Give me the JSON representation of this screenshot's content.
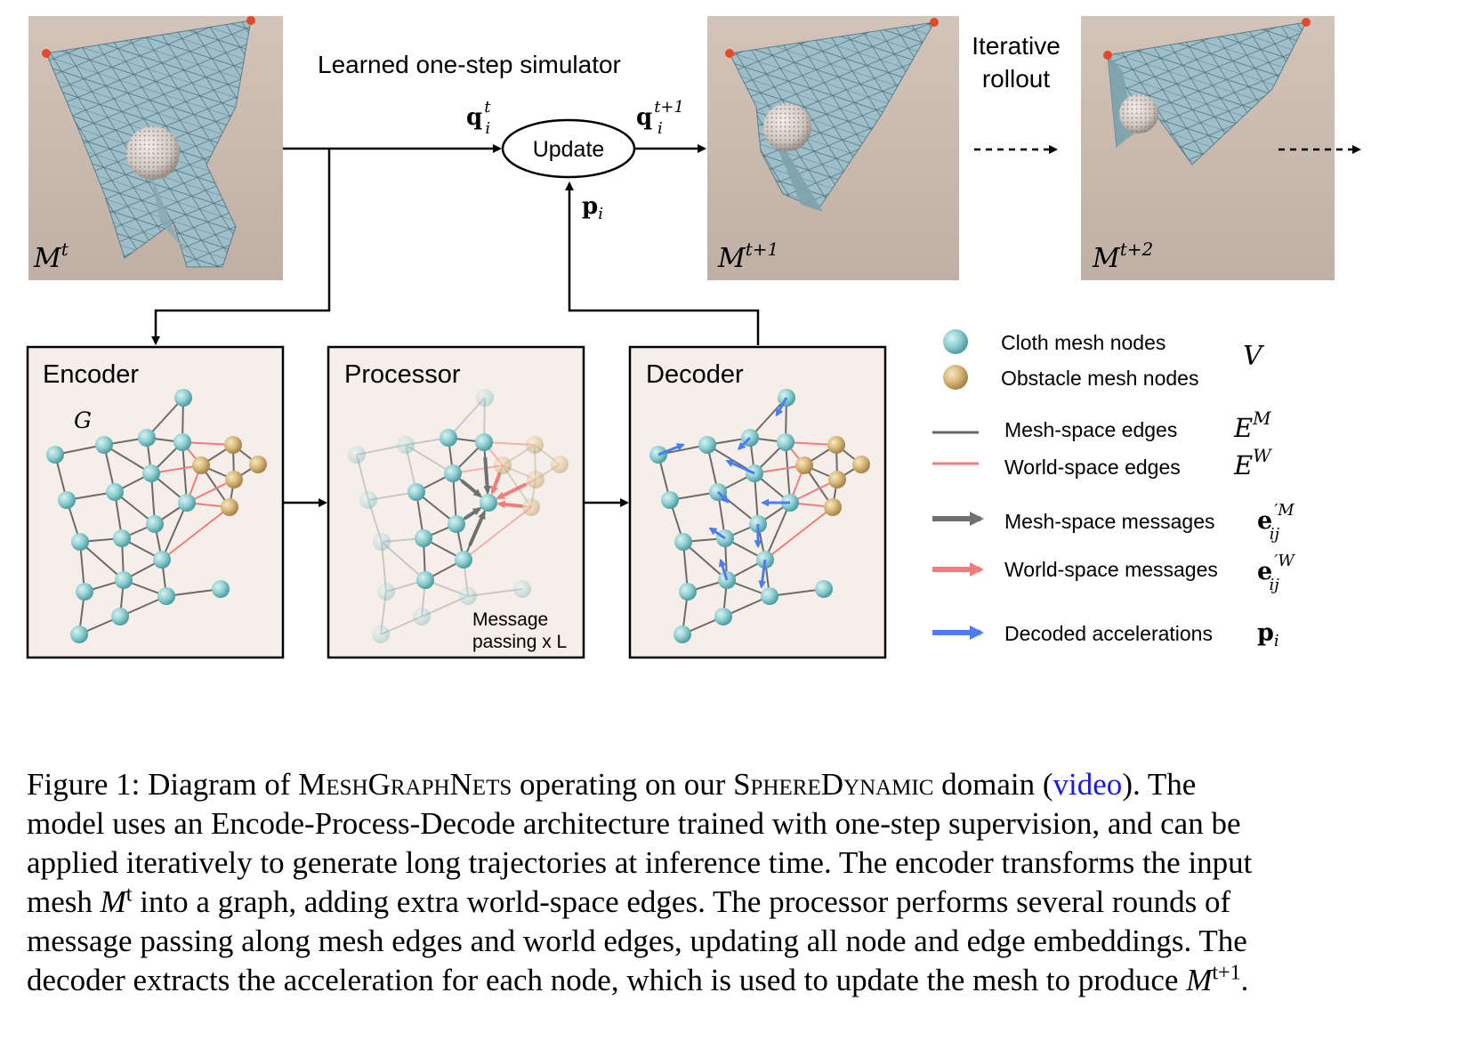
{
  "figure": {
    "simulator_title": "Learned one-step simulator",
    "iterative_rollout": [
      "Iterative",
      "rollout"
    ],
    "update_label": "Update",
    "q_t_sub": "i",
    "q_t_sup": "t",
    "q_t1_sub": "i",
    "q_t1_sup": "t+1",
    "p_label": "p",
    "p_sub": "i",
    "panels": [
      {
        "label_main": "M",
        "label_sup": "t"
      },
      {
        "label_main": "M",
        "label_sup": "t+1"
      },
      {
        "label_main": "M",
        "label_sup": "t+2"
      }
    ],
    "boxes": {
      "encoder": "Encoder",
      "processor": "Processor",
      "decoder": "Decoder",
      "graph_label": "G",
      "message_passing": [
        "Message",
        "passing x L"
      ]
    },
    "legend": {
      "cloth_nodes": "Cloth mesh nodes",
      "obstacle_nodes": "Obstacle mesh nodes",
      "V": "V",
      "mesh_edges": "Mesh-space edges",
      "world_edges": "World-space edges",
      "E": "E",
      "EM_sup": "M",
      "EW_sup": "W",
      "mesh_messages": "Mesh-space messages",
      "world_messages": "World-space messages",
      "e_sym": "e",
      "eM_sup": "′M",
      "eW_sup": "′W",
      "e_sub": "ij",
      "decoded_acc": "Decoded accelerations",
      "p_sym": "p",
      "p_sub": "i"
    },
    "colors": {
      "cloth": "#8fd0d2",
      "obstacle": "#d8b878",
      "mesh_edge": "#666666",
      "world_edge": "#f07c7c",
      "mesh_msg": "#707070",
      "world_msg": "#f07c7c",
      "accel": "#4a7ef0",
      "box_fill": "#f6efe9",
      "photo_bg": "#c9b8ad",
      "cloth_sheet": "#9dbfc9"
    }
  },
  "caption": {
    "lines": [
      {
        "parts": [
          {
            "t": "Figure 1: Diagram of ",
            "s": "n"
          },
          {
            "t": "MeshGraphNets",
            "s": "sc"
          },
          {
            "t": " operating on our ",
            "s": "n"
          },
          {
            "t": "SphereDynamic",
            "s": "sc"
          },
          {
            "t": " domain (",
            "s": "n"
          },
          {
            "t": "video",
            "s": "link"
          },
          {
            "t": "). The",
            "s": "n"
          }
        ]
      },
      {
        "parts": [
          {
            "t": "model uses an Encode-Process-Decode architecture trained with one-step supervision, and can be",
            "s": "n"
          }
        ]
      },
      {
        "parts": [
          {
            "t": "applied iteratively to generate long trajectories at inference time. The encoder transforms the input",
            "s": "n"
          }
        ]
      },
      {
        "parts": [
          {
            "t": "mesh ",
            "s": "n"
          },
          {
            "t": "M",
            "s": "i"
          },
          {
            "t": "t",
            "s": "sup"
          },
          {
            "t": " into a graph, adding extra world-space edges. The processor performs several rounds of",
            "s": "n"
          }
        ]
      },
      {
        "parts": [
          {
            "t": "message passing along mesh edges and world edges, updating all node and edge embeddings. The",
            "s": "n"
          }
        ]
      },
      {
        "parts": [
          {
            "t": "decoder extracts the acceleration for each node, which is used to update the mesh to produce ",
            "s": "n"
          },
          {
            "t": "M",
            "s": "i"
          },
          {
            "t": "t+1",
            "s": "sup"
          },
          {
            "t": ".",
            "s": "n"
          }
        ]
      }
    ]
  }
}
